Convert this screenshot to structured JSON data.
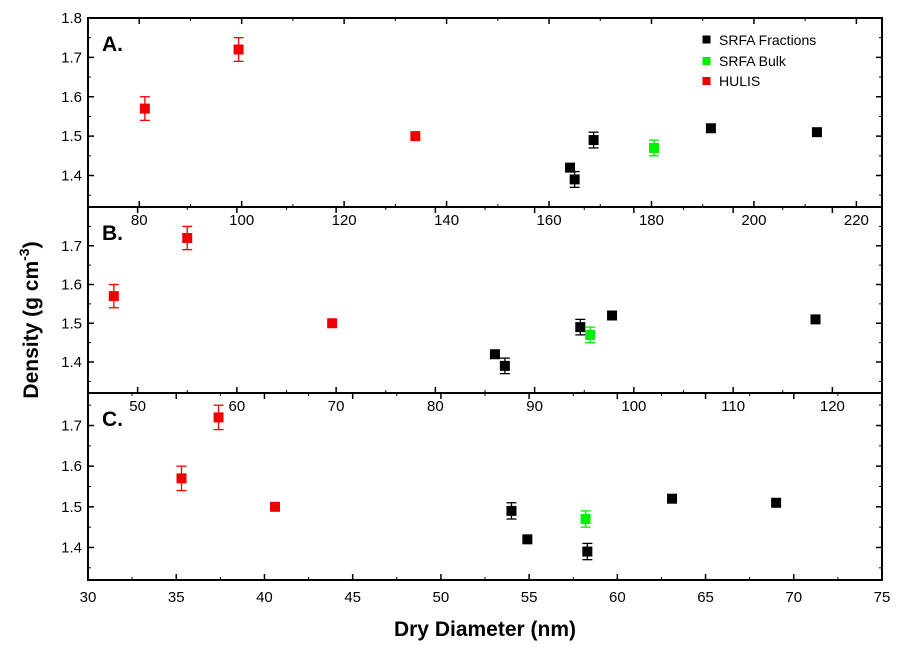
{
  "axis_titles": {
    "x": "Dry Diameter (nm)",
    "y_main": "Density (g cm",
    "y_sup": "-3",
    "y_tail": ")"
  },
  "legend": [
    {
      "label": "SRFA Fractions",
      "color": "#000000"
    },
    {
      "label": "SRFA Bulk",
      "color": "#00ee00"
    },
    {
      "label": "HULIS",
      "color": "#ee0000"
    }
  ],
  "chart_data": [
    {
      "type": "scatter",
      "panel": "A.",
      "xlim": [
        70,
        225
      ],
      "ylim": [
        1.32,
        1.8
      ],
      "yticks": [
        1.4,
        1.5,
        1.6,
        1.7,
        1.8
      ],
      "ytick_labels": [
        "1.4",
        "1.5",
        "1.6",
        "1.7",
        "1.8"
      ],
      "xticks": [
        80,
        100,
        120,
        140,
        160,
        180,
        200,
        220
      ],
      "grid": false,
      "series": [
        {
          "name": "SRFA Fractions",
          "color": "#000000",
          "points": [
            {
              "x": 164.1,
              "y": 1.42,
              "err": 0.0
            },
            {
              "x": 165.0,
              "y": 1.39,
              "err": 0.02
            },
            {
              "x": 168.7,
              "y": 1.49,
              "err": 0.02
            },
            {
              "x": 191.6,
              "y": 1.52,
              "err": 0.0
            },
            {
              "x": 212.3,
              "y": 1.51,
              "err": 0.0
            }
          ]
        },
        {
          "name": "SRFA Bulk",
          "color": "#00ee00",
          "points": [
            {
              "x": 180.5,
              "y": 1.47,
              "err": 0.02
            }
          ]
        },
        {
          "name": "HULIS",
          "color": "#ee0000",
          "points": [
            {
              "x": 81.1,
              "y": 1.57,
              "err": 0.03
            },
            {
              "x": 99.4,
              "y": 1.72,
              "err": 0.03
            },
            {
              "x": 133.9,
              "y": 1.5,
              "err": 0.0
            }
          ]
        }
      ]
    },
    {
      "type": "scatter",
      "panel": "B.",
      "xlim": [
        45,
        125
      ],
      "ylim": [
        1.32,
        1.8
      ],
      "yticks": [
        1.4,
        1.5,
        1.6,
        1.7
      ],
      "ytick_labels": [
        "1.4",
        "1.5",
        "1.6",
        "1.7"
      ],
      "xticks": [
        50,
        60,
        70,
        80,
        90,
        100,
        110,
        120
      ],
      "grid": false,
      "series": [
        {
          "name": "SRFA Fractions",
          "color": "#000000",
          "points": [
            {
              "x": 86.0,
              "y": 1.42,
              "err": 0.0
            },
            {
              "x": 87.0,
              "y": 1.39,
              "err": 0.02
            },
            {
              "x": 94.6,
              "y": 1.49,
              "err": 0.02
            },
            {
              "x": 97.8,
              "y": 1.52,
              "err": 0.0
            },
            {
              "x": 118.3,
              "y": 1.51,
              "err": 0.0
            }
          ]
        },
        {
          "name": "SRFA Bulk",
          "color": "#00ee00",
          "points": [
            {
              "x": 95.6,
              "y": 1.47,
              "err": 0.02
            }
          ]
        },
        {
          "name": "HULIS",
          "color": "#ee0000",
          "points": [
            {
              "x": 47.6,
              "y": 1.57,
              "err": 0.03
            },
            {
              "x": 55.0,
              "y": 1.72,
              "err": 0.03
            },
            {
              "x": 69.6,
              "y": 1.5,
              "err": 0.0
            }
          ]
        }
      ]
    },
    {
      "type": "scatter",
      "panel": "C.",
      "xlim": [
        30,
        75
      ],
      "ylim": [
        1.32,
        1.78
      ],
      "yticks": [
        1.4,
        1.5,
        1.6,
        1.7
      ],
      "ytick_labels": [
        "1.4",
        "1.5",
        "1.6",
        "1.7"
      ],
      "xticks": [
        30,
        35,
        40,
        45,
        50,
        55,
        60,
        65,
        70,
        75
      ],
      "grid": false,
      "series": [
        {
          "name": "SRFA Fractions",
          "color": "#000000",
          "points": [
            {
              "x": 54.0,
              "y": 1.49,
              "err": 0.02
            },
            {
              "x": 54.9,
              "y": 1.42,
              "err": 0.0
            },
            {
              "x": 58.3,
              "y": 1.39,
              "err": 0.02
            },
            {
              "x": 63.1,
              "y": 1.52,
              "err": 0.0
            },
            {
              "x": 69.0,
              "y": 1.51,
              "err": 0.0
            }
          ]
        },
        {
          "name": "SRFA Bulk",
          "color": "#00ee00",
          "points": [
            {
              "x": 58.2,
              "y": 1.47,
              "err": 0.02
            }
          ]
        },
        {
          "name": "HULIS",
          "color": "#ee0000",
          "points": [
            {
              "x": 35.3,
              "y": 1.57,
              "err": 0.03
            },
            {
              "x": 37.4,
              "y": 1.72,
              "err": 0.03
            },
            {
              "x": 40.6,
              "y": 1.5,
              "err": 0.0
            }
          ]
        }
      ]
    }
  ]
}
